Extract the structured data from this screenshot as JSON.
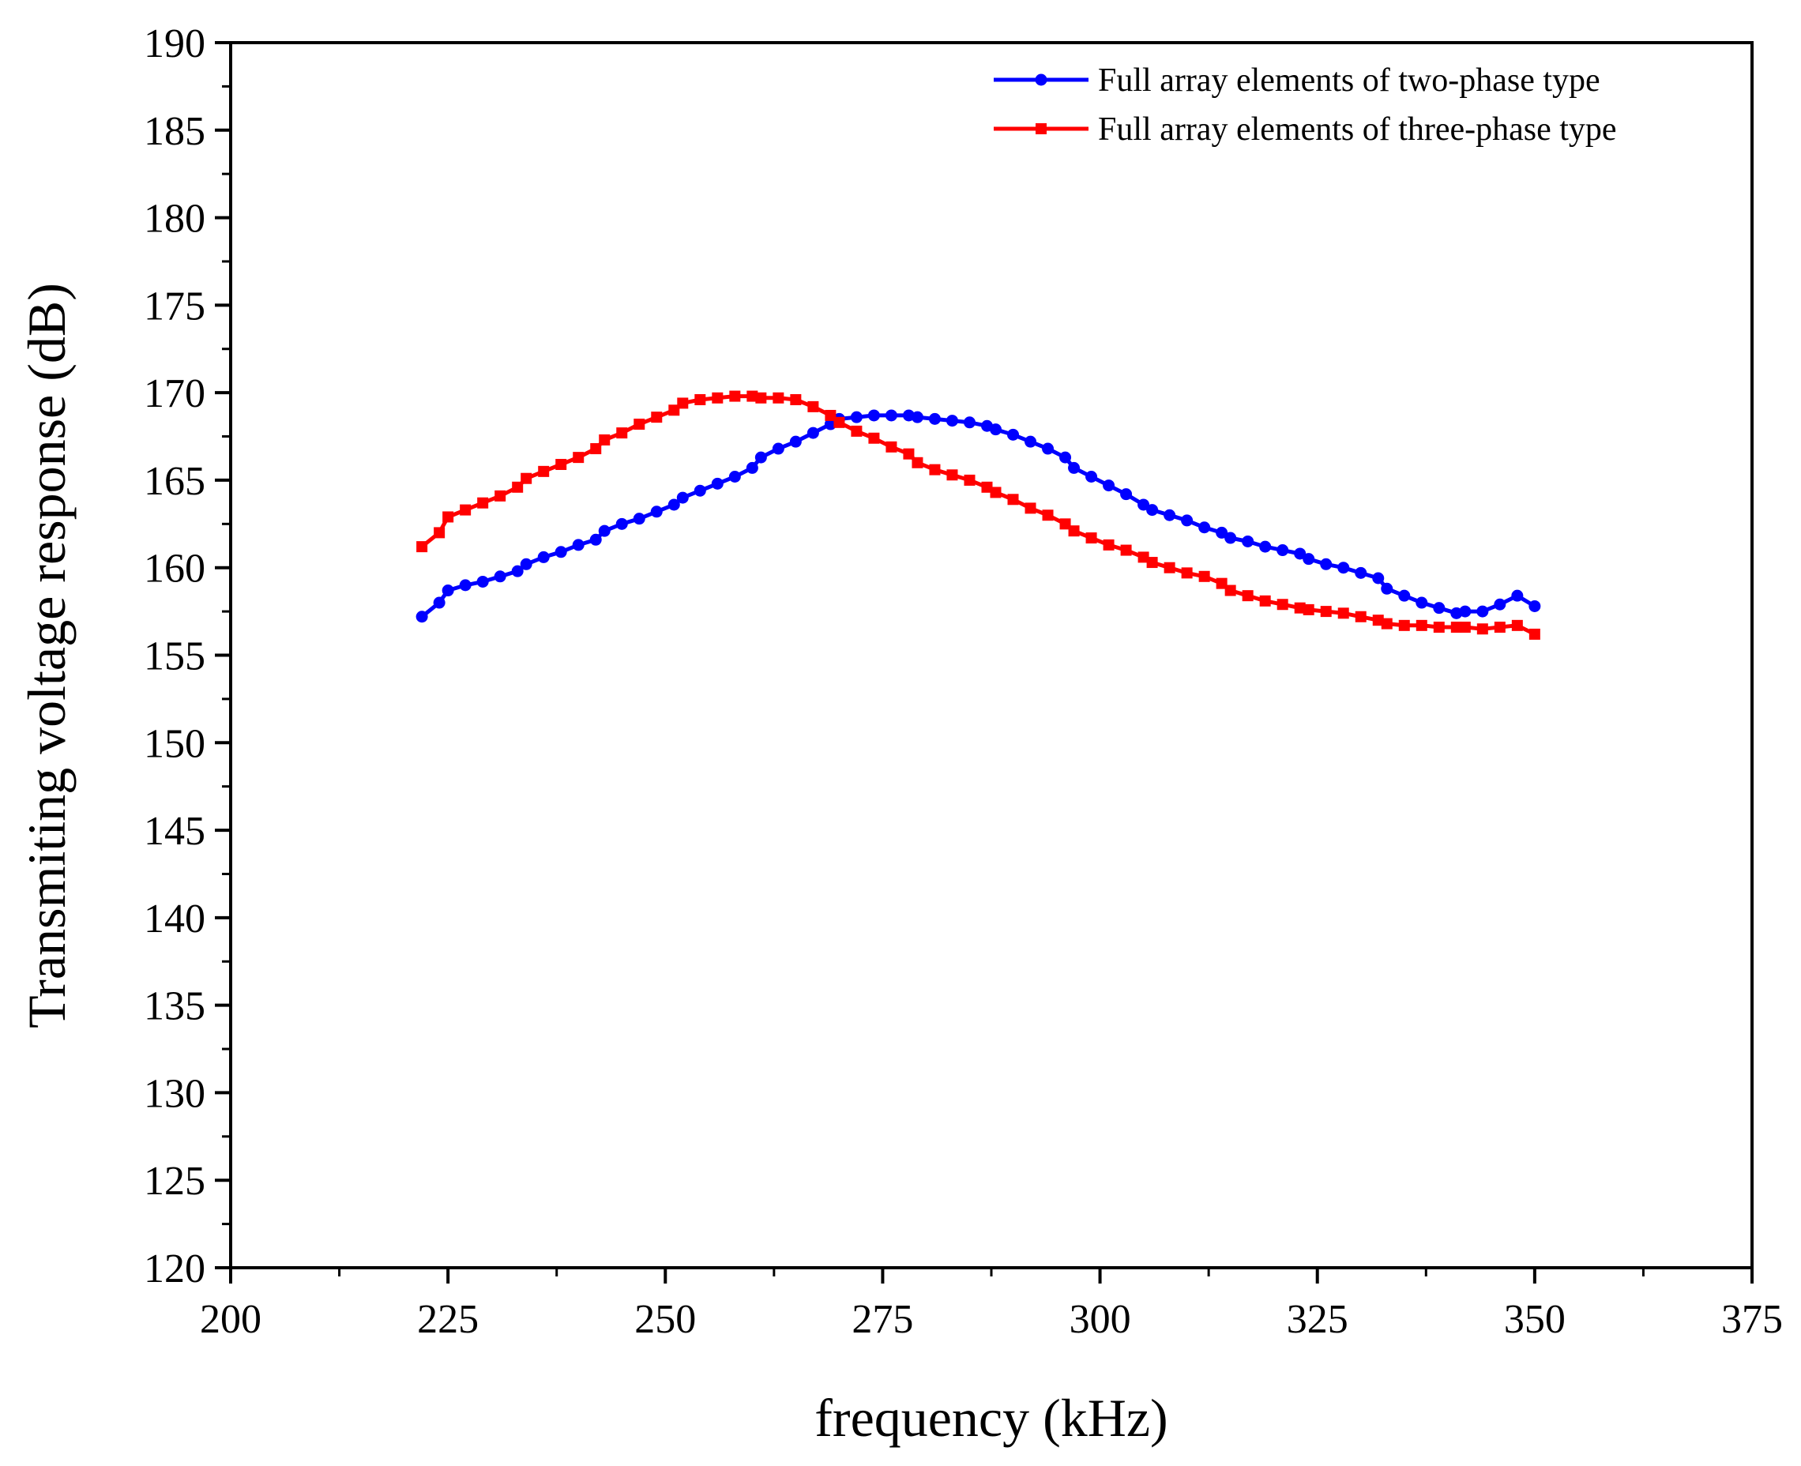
{
  "chart_data": {
    "type": "line",
    "title": "",
    "xlabel": "frequency (kHz)",
    "ylabel": "Transmiting voltage response (dB)",
    "xlim": [
      200,
      375
    ],
    "ylim": [
      120,
      190
    ],
    "xticks": [
      200,
      225,
      250,
      275,
      300,
      325,
      350,
      375
    ],
    "yticks": [
      120,
      125,
      130,
      135,
      140,
      145,
      150,
      155,
      160,
      165,
      170,
      175,
      180,
      185,
      190
    ],
    "grid": false,
    "legend_position": "top-right",
    "series": [
      {
        "name": "Full array elements of two-phase type",
        "color": "#0000FF",
        "marker": "circle",
        "x": [
          222,
          224,
          225,
          227,
          229,
          231,
          233,
          234,
          236,
          238,
          240,
          242,
          243,
          245,
          247,
          249,
          251,
          252,
          254,
          256,
          258,
          260,
          261,
          263,
          265,
          267,
          269,
          270,
          272,
          274,
          276,
          278,
          279,
          281,
          283,
          285,
          287,
          288,
          290,
          292,
          294,
          296,
          297,
          299,
          301,
          303,
          305,
          306,
          308,
          310,
          312,
          314,
          315,
          317,
          319,
          321,
          323,
          324,
          326,
          328,
          330,
          332,
          333,
          335,
          337,
          339,
          341,
          342,
          344,
          346,
          348,
          350
        ],
        "values": [
          157.2,
          158.0,
          158.7,
          159.0,
          159.2,
          159.5,
          159.8,
          160.2,
          160.6,
          160.9,
          161.3,
          161.6,
          162.1,
          162.5,
          162.8,
          163.2,
          163.6,
          164.0,
          164.4,
          164.8,
          165.2,
          165.7,
          166.3,
          166.8,
          167.2,
          167.7,
          168.2,
          168.5,
          168.6,
          168.7,
          168.7,
          168.7,
          168.6,
          168.5,
          168.4,
          168.3,
          168.1,
          167.9,
          167.6,
          167.2,
          166.8,
          166.3,
          165.7,
          165.2,
          164.7,
          164.2,
          163.6,
          163.3,
          163.0,
          162.7,
          162.3,
          162.0,
          161.7,
          161.5,
          161.2,
          161.0,
          160.8,
          160.5,
          160.2,
          160.0,
          159.7,
          159.4,
          158.8,
          158.4,
          158.0,
          157.7,
          157.4,
          157.5,
          157.5,
          157.9,
          158.4,
          157.8
        ]
      },
      {
        "name": "Full array elements of three-phase type",
        "color": "#FF0000",
        "marker": "square",
        "x": [
          222,
          224,
          225,
          227,
          229,
          231,
          233,
          234,
          236,
          238,
          240,
          242,
          243,
          245,
          247,
          249,
          251,
          252,
          254,
          256,
          258,
          260,
          261,
          263,
          265,
          267,
          269,
          270,
          272,
          274,
          276,
          278,
          279,
          281,
          283,
          285,
          287,
          288,
          290,
          292,
          294,
          296,
          297,
          299,
          301,
          303,
          305,
          306,
          308,
          310,
          312,
          314,
          315,
          317,
          319,
          321,
          323,
          324,
          326,
          328,
          330,
          332,
          333,
          335,
          337,
          339,
          341,
          342,
          344,
          346,
          348,
          350
        ],
        "values": [
          161.2,
          162.0,
          162.9,
          163.3,
          163.7,
          164.1,
          164.6,
          165.1,
          165.5,
          165.9,
          166.3,
          166.8,
          167.3,
          167.7,
          168.2,
          168.6,
          169.0,
          169.4,
          169.6,
          169.7,
          169.8,
          169.8,
          169.7,
          169.7,
          169.6,
          169.2,
          168.7,
          168.3,
          167.8,
          167.4,
          166.9,
          166.5,
          166.0,
          165.6,
          165.3,
          165.0,
          164.6,
          164.3,
          163.9,
          163.4,
          163.0,
          162.5,
          162.1,
          161.7,
          161.3,
          161.0,
          160.6,
          160.3,
          160.0,
          159.7,
          159.5,
          159.1,
          158.7,
          158.4,
          158.1,
          157.9,
          157.7,
          157.6,
          157.5,
          157.4,
          157.2,
          157.0,
          156.8,
          156.7,
          156.7,
          156.6,
          156.6,
          156.6,
          156.5,
          156.6,
          156.7,
          156.2
        ]
      }
    ]
  }
}
